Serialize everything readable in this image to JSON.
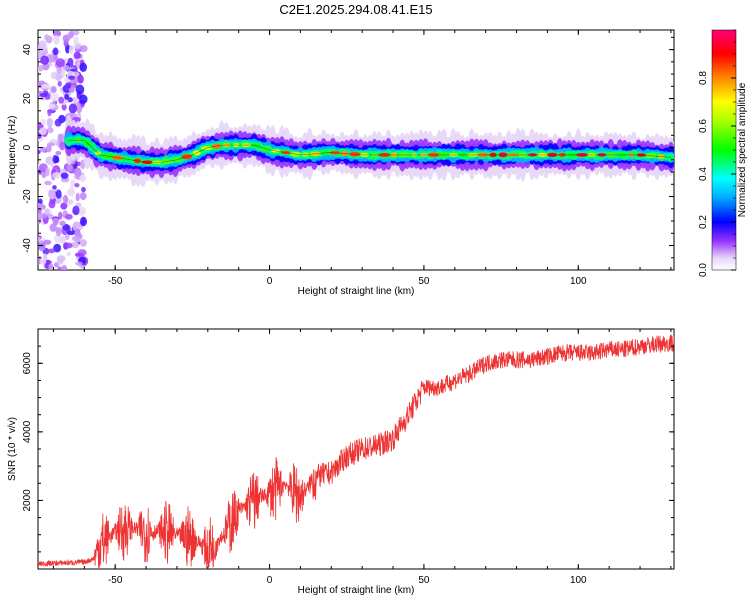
{
  "title": "C2E1.2025.294.08.41.E15",
  "chart_data": [
    {
      "type": "heatmap",
      "xlabel": "Height of straight line (km)",
      "ylabel": "Frequency (Hz)",
      "xlim": [
        -75,
        131
      ],
      "ylim": [
        -50,
        48
      ],
      "x_ticks": [
        -50,
        0,
        50,
        100
      ],
      "y_ticks": [
        -40,
        -20,
        0,
        20,
        40
      ],
      "colorbar": {
        "label": "Normalized spectral amplitude",
        "range": [
          0,
          1
        ],
        "ticks": [
          0.0,
          0.2,
          0.4,
          0.6,
          0.8
        ]
      },
      "ridge": {
        "x": [
          -65,
          -60,
          -55,
          -50,
          -45,
          -40,
          -35,
          -30,
          -25,
          -20,
          -15,
          -10,
          -5,
          0,
          5,
          10,
          20,
          30,
          40,
          50,
          60,
          70,
          80,
          90,
          100,
          110,
          120,
          130
        ],
        "y": [
          3,
          3,
          -3,
          -4,
          -5,
          -6,
          -6,
          -5,
          -3,
          0,
          1,
          1,
          1,
          -1,
          -2,
          -3,
          -2,
          -3,
          -3,
          -3,
          -3,
          -3,
          -3,
          -3,
          -3,
          -3,
          -3,
          -4
        ]
      }
    },
    {
      "type": "line",
      "xlabel": "Height of straight line (km)",
      "ylabel": "SNR (10 * v/v)",
      "xlim": [
        -75,
        131
      ],
      "ylim": [
        0,
        7000
      ],
      "x_ticks": [
        -50,
        0,
        50,
        100
      ],
      "y_ticks": [
        2000,
        4000,
        6000
      ],
      "color": "#ee3333",
      "trend": {
        "x": [
          -75,
          -60,
          -57,
          -55,
          -50,
          -45,
          -40,
          -35,
          -30,
          -25,
          -20,
          -15,
          -10,
          -5,
          0,
          5,
          10,
          15,
          20,
          25,
          30,
          35,
          40,
          45,
          50,
          55,
          60,
          65,
          70,
          75,
          80,
          85,
          90,
          95,
          100,
          105,
          110,
          115,
          120,
          125,
          130
        ],
        "y": [
          150,
          200,
          300,
          700,
          1100,
          1200,
          1100,
          1100,
          1000,
          900,
          600,
          1000,
          1700,
          2000,
          2200,
          2500,
          2100,
          2700,
          2800,
          3300,
          3500,
          3600,
          3800,
          4500,
          5300,
          5300,
          5500,
          5700,
          6000,
          6100,
          6100,
          6100,
          6200,
          6300,
          6300,
          6300,
          6400,
          6400,
          6500,
          6550,
          6600
        ]
      }
    }
  ]
}
